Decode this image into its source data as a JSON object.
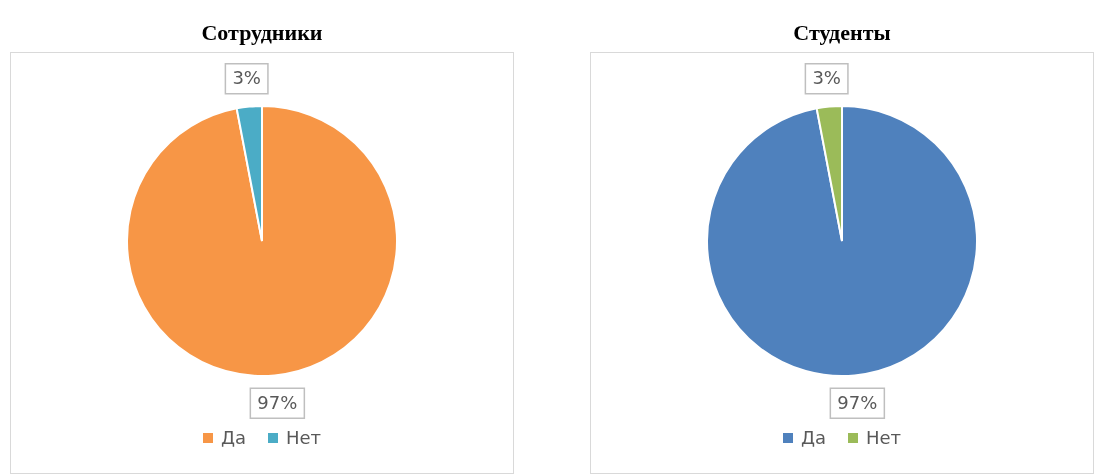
{
  "chart_data": [
    {
      "type": "pie",
      "title": "Сотрудники",
      "categories": [
        "Да",
        "Нет"
      ],
      "values": [
        97,
        3
      ],
      "colors": [
        "#f79646",
        "#4bacc6"
      ],
      "value_labels": [
        "97%",
        "3%"
      ],
      "legend": "bottom"
    },
    {
      "type": "pie",
      "title": "Студенты",
      "categories": [
        "Да",
        "Нет"
      ],
      "values": [
        97,
        3
      ],
      "colors": [
        "#4f81bd",
        "#9bbb59"
      ],
      "value_labels": [
        "97%",
        "3%"
      ],
      "legend": "bottom"
    }
  ]
}
